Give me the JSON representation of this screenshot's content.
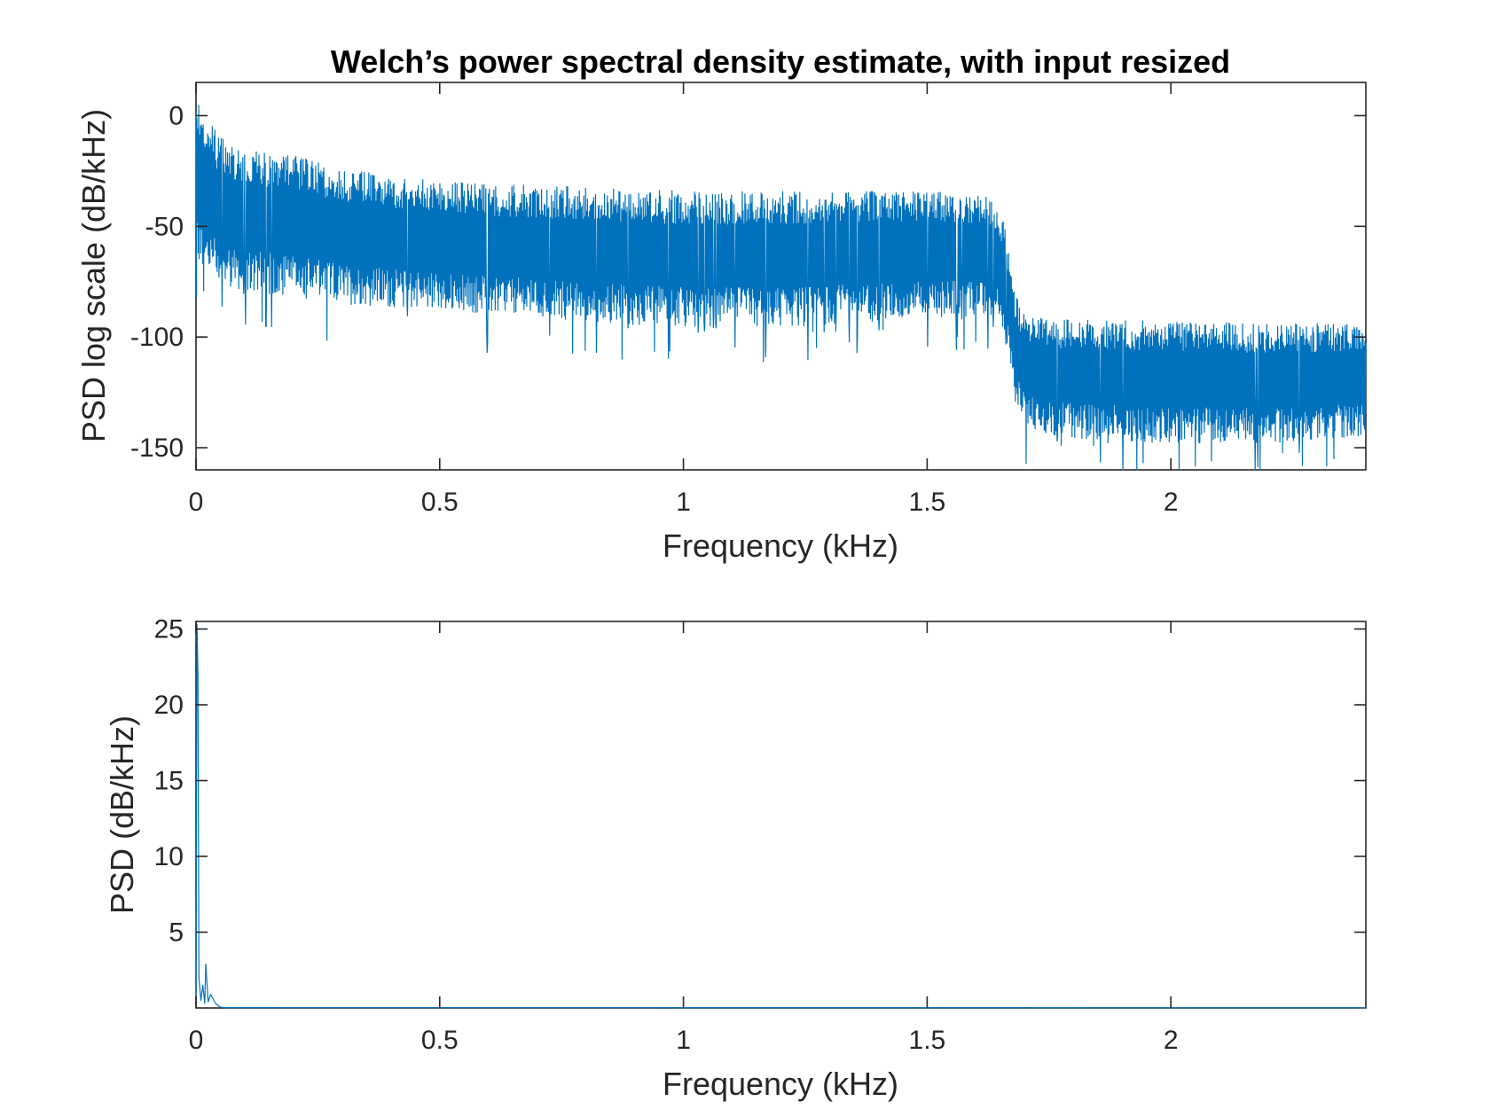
{
  "chart_data": [
    {
      "type": "line",
      "title": "Welch’s power spectral density estimate, with input resized",
      "xlabel": "Frequency (kHz)",
      "ylabel": "PSD log scale (dB/kHz)",
      "xlim": [
        0,
        2.4
      ],
      "ylim": [
        -160,
        15
      ],
      "xticks": [
        0,
        0.5,
        1,
        1.5,
        2
      ],
      "xtick_labels": [
        "0",
        "0.5",
        "1",
        "1.5",
        "2"
      ],
      "yticks": [
        0,
        -50,
        -100,
        -150
      ],
      "ytick_labels": [
        "0",
        "-50",
        "-100",
        "-150"
      ],
      "grid": false,
      "color": "#0072bd",
      "series": [
        {
          "x": [
            0,
            0.01,
            0.05,
            0.1,
            0.2,
            0.3,
            0.5,
            0.75,
            1.0,
            1.25,
            1.5,
            1.62,
            1.64,
            1.66,
            1.68,
            1.7,
            1.75,
            2.0,
            2.2,
            2.4
          ],
          "upper": [
            15,
            3,
            -10,
            -15,
            -18,
            -24,
            -30,
            -32,
            -34,
            -34,
            -34,
            -35,
            -38,
            -50,
            -80,
            -90,
            -92,
            -93,
            -94,
            -94
          ],
          "lower": [
            -70,
            -70,
            -75,
            -80,
            -82,
            -85,
            -88,
            -92,
            -96,
            -95,
            -92,
            -90,
            -92,
            -100,
            -130,
            -140,
            -145,
            -148,
            -148,
            -145
          ]
        }
      ]
    },
    {
      "type": "line",
      "title": "",
      "xlabel": "Frequency (kHz)",
      "ylabel": "PSD (dB/kHz)",
      "xlim": [
        0,
        2.4
      ],
      "ylim": [
        0,
        25.5
      ],
      "xticks": [
        0,
        0.5,
        1,
        1.5,
        2
      ],
      "xtick_labels": [
        "0",
        "0.5",
        "1",
        "1.5",
        "2"
      ],
      "yticks": [
        5,
        10,
        15,
        20,
        25
      ],
      "ytick_labels": [
        "5",
        "10",
        "15",
        "20",
        "25"
      ],
      "grid": false,
      "color": "#0072bd",
      "series": [
        {
          "x": [
            0,
            0.002,
            0.004,
            0.006,
            0.01,
            0.014,
            0.018,
            0.02,
            0.025,
            0.03,
            0.04,
            0.05,
            0.06,
            2.4
          ],
          "y": [
            0,
            25.3,
            22,
            2,
            0.5,
            1.5,
            0.3,
            2.9,
            0.4,
            0.9,
            0.3,
            0.05,
            0.02,
            0.01
          ]
        }
      ]
    }
  ]
}
